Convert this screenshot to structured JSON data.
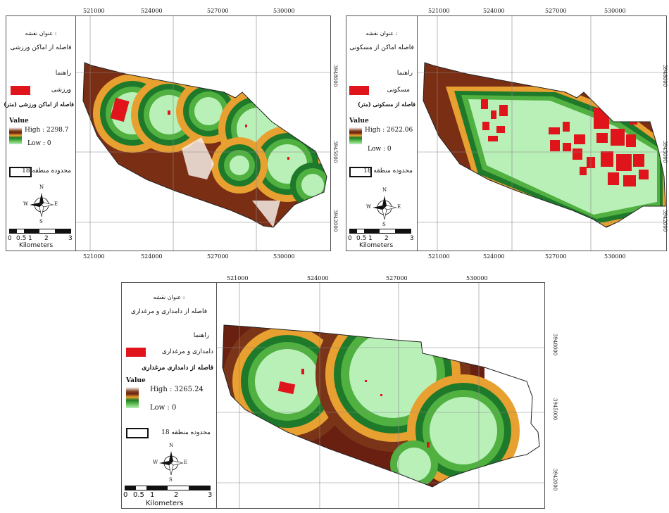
{
  "panels": [
    {
      "id": "sports",
      "map_title_label": "عنوان نقشه :",
      "map_title": "فاصله از اماکن ورزشی",
      "legend_label": "راهنما",
      "feature_label": "ورزشی",
      "distance_label": "فاصله از اماکن ورزشی (متر)",
      "value_label": "Value",
      "high_label": "High : 2298.7",
      "low_label": "Low : 0",
      "boundary_label": "محدوده منطقه 18",
      "x_ticks": [
        "521000",
        "524000",
        "527000",
        "530000"
      ],
      "y_ticks": [
        "3948000",
        "3945000",
        "3942000"
      ],
      "x_ticks_bottom": [
        "521000",
        "524000",
        "527000",
        "530000"
      ],
      "scale_labels": [
        "0",
        "0.5",
        "1",
        "2",
        "3"
      ],
      "scale_unit": "Kilometers"
    },
    {
      "id": "residential",
      "map_title_label": "عنوان نقشه :",
      "map_title": "فاصله اماکن از مسکونی",
      "legend_label": "راهنما",
      "feature_label": "مسکونی",
      "distance_label": "فاصله از مسکونی (متر)",
      "value_label": "Value",
      "high_label": "High : 2622.06",
      "low_label": "Low : 0",
      "boundary_label": "محدوده منطقه 18",
      "x_ticks": [
        "521000",
        "524000",
        "527000",
        "530000"
      ],
      "y_ticks": [
        "3948000",
        "3945000",
        "3942000"
      ],
      "x_ticks_bottom": [
        "521000",
        "524000",
        "527000",
        "530000"
      ],
      "scale_labels": [
        "0",
        "0.5",
        "1",
        "2",
        "3"
      ],
      "scale_unit": "Kilometers"
    },
    {
      "id": "livestock",
      "map_title_label": "عنوان نقشه :",
      "map_title": "فاصله از دامداری و مرغداری",
      "legend_label": "راهنما",
      "feature_label": "دامداری و مرغداری",
      "distance_label": "فاصله از دامداری مرغداری",
      "value_label": "Value",
      "high_label": "High : 3265.24",
      "low_label": "Low : 0",
      "boundary_label": "محدوده منطقه 18",
      "x_ticks": [
        "521000",
        "524000",
        "527000",
        "530000"
      ],
      "y_ticks": [
        "3948000",
        "3945000",
        "3942000"
      ],
      "x_ticks_bottom": [],
      "scale_labels": [
        "0",
        "0.5",
        "1",
        "2",
        "3"
      ],
      "scale_unit": "Kilometers"
    }
  ],
  "compass": {
    "n": "N",
    "s": "S",
    "e": "E",
    "w": "W"
  },
  "colors": {
    "near": "#b8f0b8",
    "mid_green": "#1e7a2a",
    "mid_orange": "#e8a030",
    "far_brown": "#6a2010",
    "max_white": "#ffffff",
    "feature_red": "#e0141b"
  }
}
